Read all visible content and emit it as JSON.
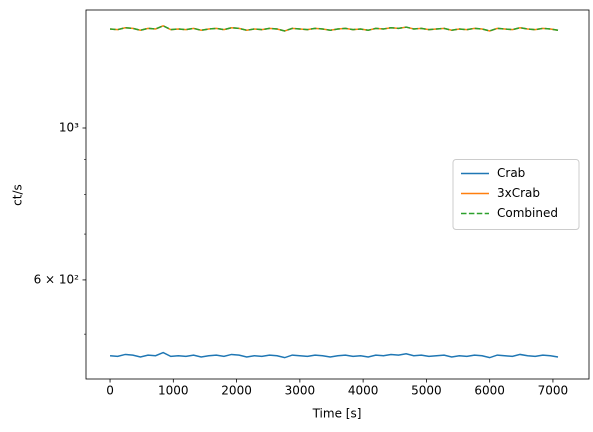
{
  "chart_data": {
    "type": "line",
    "xlabel": "Time [s]",
    "ylabel": "ct/s",
    "yscale": "log",
    "xlim": [
      -380,
      7570
    ],
    "ylim": [
      430,
      1487
    ],
    "xticks": [
      0,
      1000,
      2000,
      3000,
      4000,
      5000,
      6000,
      7000
    ],
    "yticks": [
      {
        "value": 600,
        "label": "6 × 10²"
      },
      {
        "value": 1000,
        "label": "10³"
      }
    ],
    "yminorticks": [
      500,
      700,
      800,
      900
    ],
    "legend": "center right",
    "x": [
      0,
      120,
      240,
      360,
      480,
      600,
      720,
      840,
      960,
      1080,
      1200,
      1320,
      1440,
      1560,
      1680,
      1800,
      1920,
      2040,
      2160,
      2280,
      2400,
      2520,
      2640,
      2760,
      2880,
      3000,
      3120,
      3240,
      3360,
      3480,
      3600,
      3720,
      3840,
      3960,
      4080,
      4200,
      4320,
      4440,
      4560,
      4680,
      4800,
      4920,
      5040,
      5160,
      5280,
      5400,
      5520,
      5640,
      5760,
      5880,
      6000,
      6120,
      6240,
      6360,
      6480,
      6600,
      6720,
      6840,
      6960,
      7080
    ],
    "series": [
      {
        "name": "Crab",
        "color": "#1f77b4",
        "dash": "solid",
        "values": [
          465,
          464,
          467,
          466,
          463,
          466,
          465,
          470,
          464,
          465,
          464,
          466,
          463,
          465,
          466,
          464,
          467,
          466,
          463,
          465,
          464,
          466,
          465,
          462,
          466,
          465,
          464,
          466,
          465,
          463,
          465,
          466,
          464,
          465,
          463,
          466,
          465,
          467,
          466,
          468,
          465,
          466,
          464,
          465,
          466,
          463,
          465,
          464,
          466,
          465,
          462,
          466,
          465,
          464,
          467,
          465,
          464,
          466,
          465,
          463
        ]
      },
      {
        "name": "3xCrab",
        "color": "#ff7f0e",
        "dash": "solid",
        "values": [
          1395,
          1392,
          1401,
          1398,
          1389,
          1398,
          1395,
          1410,
          1392,
          1395,
          1392,
          1398,
          1389,
          1395,
          1398,
          1392,
          1401,
          1398,
          1389,
          1395,
          1392,
          1398,
          1395,
          1386,
          1398,
          1395,
          1392,
          1398,
          1395,
          1389,
          1395,
          1398,
          1392,
          1395,
          1389,
          1398,
          1395,
          1401,
          1398,
          1404,
          1395,
          1398,
          1392,
          1395,
          1398,
          1389,
          1395,
          1392,
          1398,
          1395,
          1386,
          1398,
          1395,
          1392,
          1401,
          1395,
          1392,
          1398,
          1395,
          1389
        ]
      },
      {
        "name": "Combined",
        "color": "#2ca02c",
        "dash": "dashed",
        "values": [
          1395,
          1392,
          1401,
          1398,
          1389,
          1398,
          1395,
          1410,
          1392,
          1395,
          1392,
          1398,
          1389,
          1395,
          1398,
          1392,
          1401,
          1398,
          1389,
          1395,
          1392,
          1398,
          1395,
          1386,
          1398,
          1395,
          1392,
          1398,
          1395,
          1389,
          1395,
          1398,
          1392,
          1395,
          1389,
          1398,
          1395,
          1401,
          1398,
          1404,
          1395,
          1398,
          1392,
          1395,
          1398,
          1389,
          1395,
          1392,
          1398,
          1395,
          1386,
          1398,
          1395,
          1392,
          1401,
          1395,
          1392,
          1398,
          1395,
          1389
        ]
      }
    ]
  }
}
